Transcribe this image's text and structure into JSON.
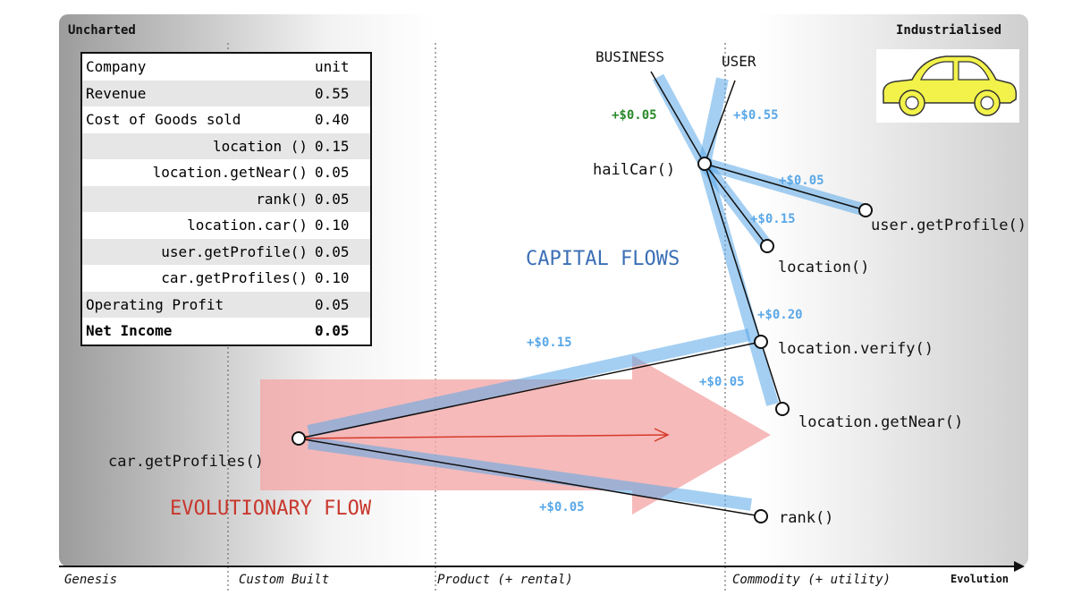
{
  "corners": {
    "left": "Uncharted",
    "right": "Industrialised"
  },
  "axis": {
    "stages": [
      "Genesis",
      "Custom Built",
      "Product (+ rental)",
      "Commodity (+ utility)"
    ],
    "evolution_label": "Evolution"
  },
  "table": {
    "header": {
      "label": "Company",
      "value": "unit"
    },
    "rows": [
      {
        "label": "Revenue",
        "value": "0.55"
      },
      {
        "label": "Cost of Goods sold",
        "value": "0.40"
      },
      {
        "label": "location ()",
        "value": "0.15"
      },
      {
        "label": "location.getNear()",
        "value": "0.05"
      },
      {
        "label": "rank()",
        "value": "0.05"
      },
      {
        "label": "location.car()",
        "value": "0.10"
      },
      {
        "label": "user.getProfile()",
        "value": "0.05"
      },
      {
        "label": "car.getProfiles()",
        "value": "0.10"
      },
      {
        "label": "Operating Profit",
        "value": "0.05"
      },
      {
        "label": "Net Income",
        "value": "0.05"
      }
    ]
  },
  "anchors": {
    "business": "BUSINESS",
    "user": "USER"
  },
  "nodes": {
    "hailCar": "hailCar()",
    "user_getProfile": "user.getProfile()",
    "location": "location()",
    "location_verify": "location.verify()",
    "location_getNear": "location.getNear()",
    "car_getProfiles": "car.getProfiles()",
    "rank": "rank()"
  },
  "flows": {
    "business_hailcar": "+$0.05",
    "user_hailcar": "+$0.55",
    "hailcar_userprofile": "+$0.05",
    "hailcar_location": "+$0.15",
    "hailcar_verify": "+$0.20",
    "verify_getnear": "+$0.05",
    "verify_carprofiles": "+$0.15",
    "carprofiles_rank": "+$0.05"
  },
  "titles": {
    "capital": "CAPITAL FLOWS",
    "evolutionary": "EVOLUTIONARY FLOW"
  },
  "colors": {
    "capital_flow": "#5aa8e8",
    "evolution_arrow": "#f4a9a9",
    "evolution_line": "#d63a2a",
    "car_body": "#f2f24a",
    "profit_positive": "#2a8a2a"
  },
  "icons": {
    "car": "car-icon"
  }
}
